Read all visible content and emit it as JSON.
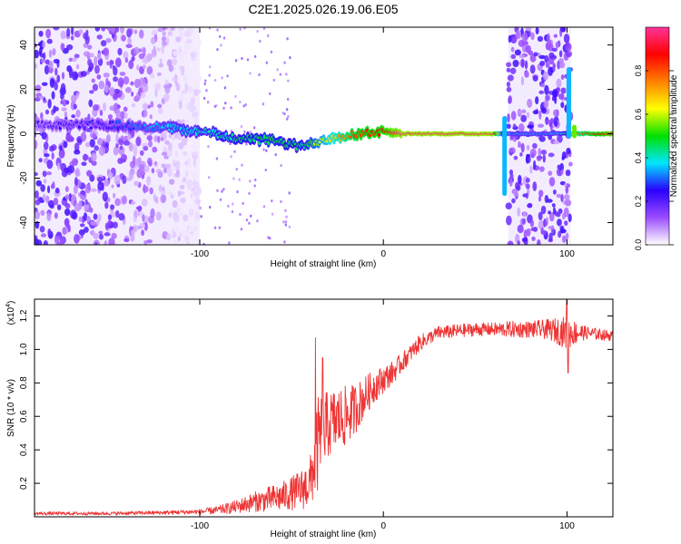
{
  "title": "C2E1.2025.026.19.06.E05",
  "chart_data": [
    {
      "type": "heatmap",
      "title": "C2E1.2025.026.19.06.E05",
      "xlabel": "Height of straight line (km)",
      "ylabel": "Frequency (Hz)",
      "xlim": [
        -190,
        125
      ],
      "ylim": [
        -50,
        48
      ],
      "xticks": [
        -100,
        0,
        100
      ],
      "yticks": [
        -40,
        -20,
        0,
        20,
        40
      ],
      "xtick_labels": [
        "-100",
        "0",
        "100"
      ],
      "ytick_labels": [
        "-40",
        "-20",
        "0",
        "20",
        "40"
      ],
      "colorbar": {
        "label": "Normalized spectral amplitude",
        "range": [
          0.0,
          1.0
        ],
        "ticks": [
          0.0,
          0.2,
          0.4,
          0.6,
          0.8
        ],
        "tick_labels": [
          "0.0",
          "0.2",
          "0.4",
          "0.6",
          "0.8"
        ],
        "colors": [
          "#ffffff",
          "#9b4dff",
          "#2a00ff",
          "#00e5ff",
          "#00e000",
          "#ffff00",
          "#ff8000",
          "#ff0000",
          "#ff3399"
        ]
      },
      "ridge": {
        "x": [
          -190,
          -150,
          -120,
          -100,
          -80,
          -60,
          -45,
          -38,
          -30,
          -15,
          0,
          10,
          60,
          64,
          68,
          95,
          100,
          104,
          125
        ],
        "freq": [
          4,
          4,
          3,
          1,
          -2,
          -3,
          -6,
          -4,
          -2,
          0,
          1,
          0,
          0,
          0,
          0,
          0,
          0,
          0,
          0
        ],
        "amplitude": [
          0.15,
          0.2,
          0.3,
          0.35,
          0.4,
          0.45,
          0.4,
          0.5,
          0.6,
          0.8,
          0.85,
          0.95,
          0.95,
          0.5,
          0.3,
          0.3,
          0.4,
          0.7,
          0.9
        ]
      },
      "noise_regions": [
        {
          "x": [
            -190,
            -100
          ],
          "freq": [
            -50,
            48
          ],
          "amplitude": 0.2
        },
        {
          "x": [
            68,
            102
          ],
          "freq": [
            -50,
            48
          ],
          "amplitude": 0.2
        }
      ]
    },
    {
      "type": "line",
      "xlabel": "Height of straight line (km)",
      "ylabel": "SNR (10 * v/v)",
      "y_multiplier": "(x10",
      "y_multiplier_exp": "4",
      "y_multiplier_close": ")",
      "xlim": [
        -190,
        125
      ],
      "ylim": [
        0,
        1.3
      ],
      "xticks": [
        -100,
        0,
        100
      ],
      "yticks": [
        0.2,
        0.4,
        0.6,
        0.8,
        1.0,
        1.2
      ],
      "xtick_labels": [
        "-100",
        "0",
        "100"
      ],
      "ytick_labels": [
        "0.2",
        "0.4",
        "0.6",
        "0.8",
        "1.0",
        "1.2"
      ],
      "series": [
        {
          "name": "SNR",
          "color": "#ee3333",
          "x": [
            -190,
            -150,
            -120,
            -100,
            -90,
            -80,
            -70,
            -60,
            -55,
            -50,
            -45,
            -40,
            -35,
            -30,
            -25,
            -20,
            -15,
            -10,
            -5,
            0,
            5,
            10,
            15,
            20,
            25,
            30,
            40,
            50,
            60,
            70,
            80,
            90,
            100,
            110,
            125
          ],
          "y": [
            0.02,
            0.02,
            0.025,
            0.03,
            0.04,
            0.06,
            0.09,
            0.11,
            0.12,
            0.14,
            0.16,
            0.2,
            0.45,
            0.55,
            0.58,
            0.6,
            0.65,
            0.72,
            0.78,
            0.82,
            0.86,
            0.92,
            0.98,
            1.04,
            1.07,
            1.1,
            1.11,
            1.12,
            1.12,
            1.12,
            1.12,
            1.12,
            1.1,
            1.1,
            1.08
          ],
          "noise_amp": [
            0.01,
            0.01,
            0.012,
            0.015,
            0.025,
            0.04,
            0.06,
            0.08,
            0.09,
            0.1,
            0.12,
            0.15,
            0.3,
            0.2,
            0.2,
            0.18,
            0.15,
            0.12,
            0.1,
            0.08,
            0.07,
            0.06,
            0.05,
            0.05,
            0.04,
            0.04,
            0.04,
            0.04,
            0.04,
            0.05,
            0.05,
            0.06,
            0.1,
            0.04,
            0.03
          ],
          "spikes": [
            {
              "x": -37,
              "y": 1.07
            },
            {
              "x": -33,
              "y": 0.95
            },
            {
              "x": 100,
              "y": 1.3
            },
            {
              "x": 100.5,
              "y": 0.86
            }
          ]
        }
      ]
    }
  ]
}
